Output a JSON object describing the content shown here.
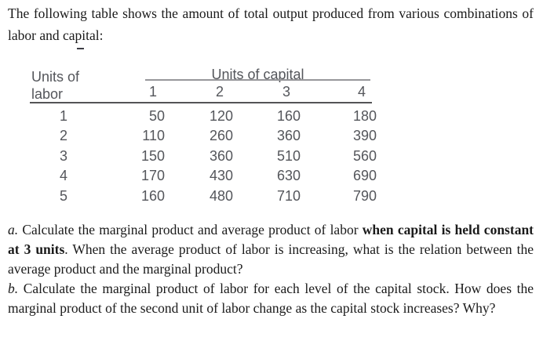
{
  "intro": {
    "text": "The following table shows the amount of total output produced from various combinations of labor and capital:"
  },
  "table": {
    "row_header_line1": "Units of",
    "row_header_line2": "labor",
    "col_group_header": "Units of capital",
    "capital_columns": [
      "1",
      "2",
      "3",
      "4"
    ],
    "rows": [
      {
        "labor": "1",
        "outputs": [
          "50",
          "120",
          "160",
          "180"
        ]
      },
      {
        "labor": "2",
        "outputs": [
          "110",
          "260",
          "360",
          "390"
        ]
      },
      {
        "labor": "3",
        "outputs": [
          "150",
          "360",
          "510",
          "560"
        ]
      },
      {
        "labor": "4",
        "outputs": [
          "170",
          "430",
          "630",
          "690"
        ]
      },
      {
        "labor": "5",
        "outputs": [
          "160",
          "480",
          "710",
          "790"
        ]
      }
    ]
  },
  "questions": {
    "a": {
      "marker": "a.",
      "before_bold": " Calculate the marginal product and average product of labor ",
      "bold": "when capital is held constant at 3 units",
      "after_bold": ". When the average product of labor is increasing, what is the relation between the average product and the marginal product?"
    },
    "b": {
      "marker": "b.",
      "text": " Calculate the marginal product of labor for each level of the capital stock. How does the marginal product of the second unit of labor change as the capital stock increases? Why?"
    }
  },
  "colors": {
    "background": "#ffffff",
    "body_text": "#1a1a1a",
    "table_text": "#54565b",
    "rule_light": "#97979a",
    "rule_dark": "#545456"
  }
}
